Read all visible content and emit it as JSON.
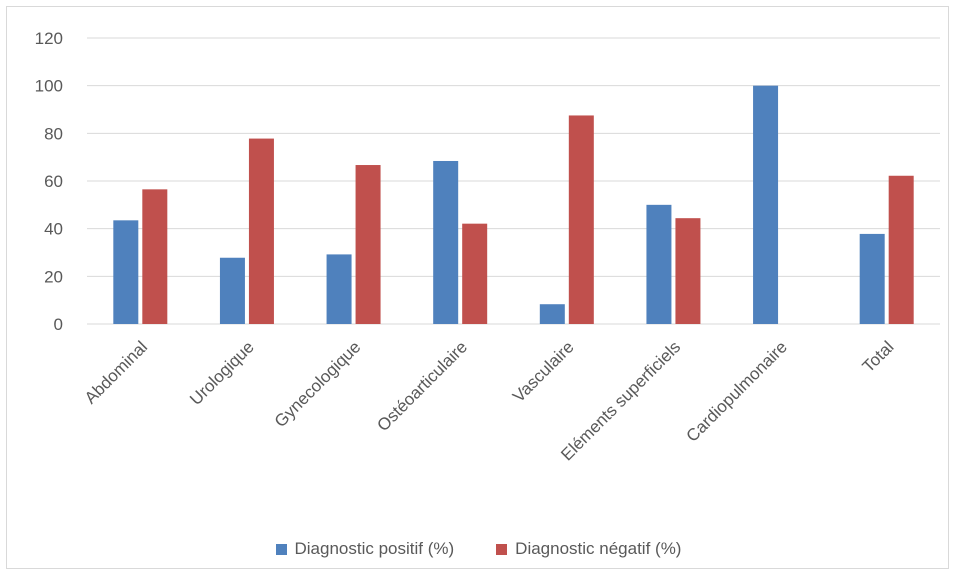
{
  "chart_data": {
    "type": "bar",
    "title": "",
    "xlabel": "",
    "ylabel": "",
    "ylim": [
      0,
      120
    ],
    "yticks": [
      0,
      20,
      40,
      60,
      80,
      100,
      120
    ],
    "grid": true,
    "legend_position": "bottom",
    "categories": [
      "Abdominal",
      "Urologique",
      "Gynecologique",
      "Ostéoarticulaire",
      "Vasculaire",
      "Eléments superficiels",
      "Cardiopulmonaire",
      "Total"
    ],
    "series": [
      {
        "name": "Diagnostic positif (%)",
        "color": "#4f81bd",
        "values": [
          43.5,
          27.8,
          29.2,
          68.4,
          8.3,
          50,
          100,
          37.8
        ]
      },
      {
        "name": "Diagnostic négatif (%)",
        "color": "#c0504d",
        "values": [
          56.5,
          77.8,
          66.7,
          42.1,
          87.5,
          44.4,
          0,
          62.2
        ]
      }
    ]
  }
}
